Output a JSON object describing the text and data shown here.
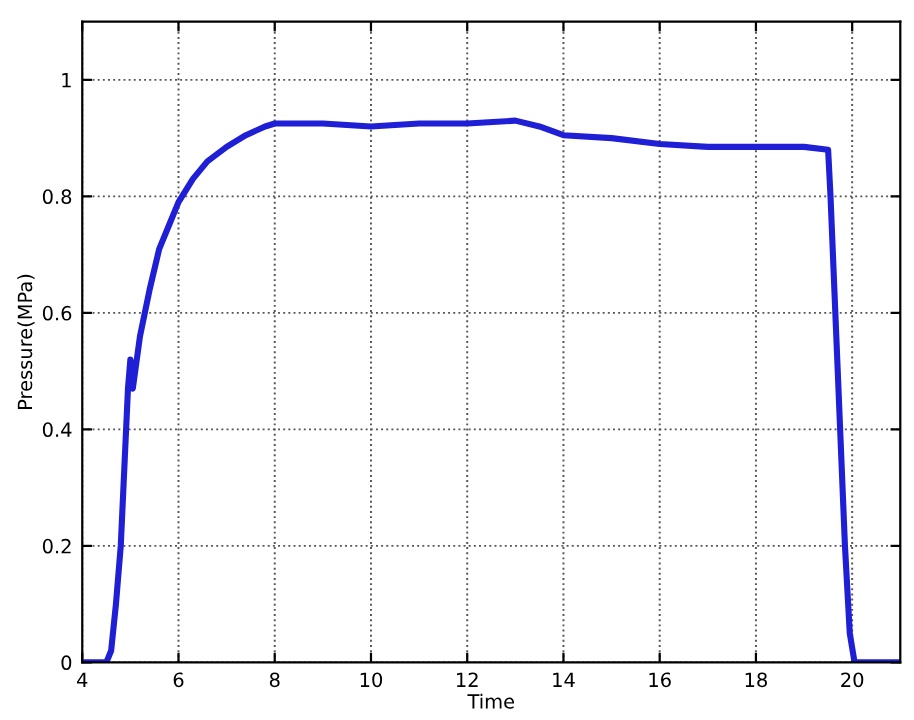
{
  "chart_data": {
    "type": "line",
    "xlabel": "Time",
    "ylabel": "Pressure(MPa)",
    "xlim": [
      4,
      21
    ],
    "ylim": [
      0,
      1.1
    ],
    "xticks": [
      4,
      6,
      8,
      10,
      12,
      14,
      16,
      18,
      20
    ],
    "yticks": [
      0,
      0.2,
      0.4,
      0.6,
      0.8,
      1
    ],
    "grid": true,
    "line_style": "solid",
    "series": [
      {
        "color": "#1f1fd6",
        "x": [
          4,
          4.5,
          4.6,
          4.7,
          4.8,
          4.9,
          4.95,
          5.0,
          5.05,
          5.1,
          5.2,
          5.4,
          5.6,
          5.8,
          6,
          6.3,
          6.6,
          7,
          7.4,
          7.8,
          8,
          9,
          10,
          11,
          12,
          13,
          13.5,
          14,
          15,
          16,
          17,
          18,
          19,
          19.5,
          19.55,
          19.65,
          19.75,
          19.85,
          19.95,
          20.05,
          21
        ],
        "values": [
          0,
          0,
          0.02,
          0.1,
          0.2,
          0.38,
          0.47,
          0.52,
          0.47,
          0.5,
          0.56,
          0.64,
          0.71,
          0.75,
          0.79,
          0.83,
          0.86,
          0.885,
          0.905,
          0.92,
          0.925,
          0.925,
          0.92,
          0.925,
          0.925,
          0.93,
          0.92,
          0.905,
          0.9,
          0.89,
          0.885,
          0.885,
          0.885,
          0.88,
          0.8,
          0.6,
          0.4,
          0.2,
          0.05,
          0,
          0
        ]
      }
    ]
  }
}
